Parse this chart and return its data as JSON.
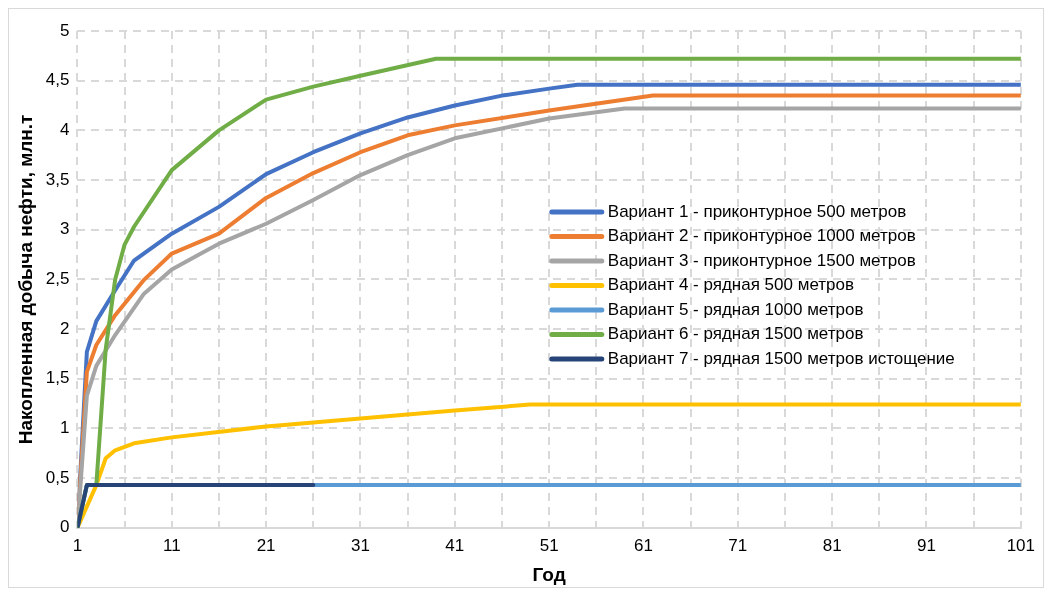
{
  "chart_data": {
    "type": "line",
    "xlabel": "Год",
    "ylabel": "Накопленная добыча нефти, млн.т",
    "xlim": [
      1,
      101
    ],
    "xticks": [
      1,
      {
        "value": 6,
        "label": null
      },
      11,
      {
        "value": 16,
        "label": null
      },
      21,
      {
        "value": 26,
        "label": null
      },
      31,
      {
        "value": 36,
        "label": null
      },
      41,
      {
        "value": 46,
        "label": null
      },
      51,
      {
        "value": 56,
        "label": null
      },
      61,
      {
        "value": 66,
        "label": null
      },
      71,
      {
        "value": 76,
        "label": null
      },
      81,
      {
        "value": 86,
        "label": null
      },
      91,
      {
        "value": 96,
        "label": null
      },
      101
    ],
    "ylim": [
      0,
      5
    ],
    "yticks": [
      0,
      {
        "value": 0.5,
        "label": "0,5"
      },
      1,
      {
        "value": 1.5,
        "label": "1,5"
      },
      2,
      {
        "value": 2.5,
        "label": "2,5"
      },
      3,
      {
        "value": 3.5,
        "label": "3,5"
      },
      4,
      {
        "value": 4.5,
        "label": "4,5"
      },
      5
    ],
    "grid": true,
    "legend": "right",
    "marker": "none",
    "line_style": "solid",
    "series": [
      {
        "name": "Вариант 1 - приконтурное 500 метров",
        "color": "#4472c4",
        "x": [
          1,
          2,
          3,
          5,
          7,
          11,
          16,
          21,
          26,
          31,
          36,
          41,
          46,
          51,
          54,
          101
        ],
        "values": [
          0,
          1.77,
          2.08,
          2.39,
          2.69,
          2.96,
          3.23,
          3.56,
          3.78,
          3.97,
          4.13,
          4.25,
          4.35,
          4.42,
          4.46,
          4.46
        ]
      },
      {
        "name": "Вариант 2 - приконтурное 1000 метров",
        "color": "#ed7d31",
        "x": [
          1,
          2,
          3,
          5,
          8,
          11,
          16,
          21,
          26,
          31,
          36,
          41,
          51,
          62,
          101
        ],
        "values": [
          0,
          1.57,
          1.84,
          2.14,
          2.49,
          2.76,
          2.96,
          3.32,
          3.57,
          3.78,
          3.95,
          4.05,
          4.2,
          4.35,
          4.35
        ]
      },
      {
        "name": "Вариант 3 - приконтурное 1500 метров",
        "color": "#a5a5a5",
        "x": [
          1,
          2,
          3,
          5,
          8,
          11,
          16,
          21,
          26,
          31,
          36,
          41,
          51,
          59,
          101
        ],
        "values": [
          0,
          1.33,
          1.63,
          1.94,
          2.35,
          2.6,
          2.86,
          3.06,
          3.3,
          3.55,
          3.75,
          3.92,
          4.12,
          4.22,
          4.22
        ]
      },
      {
        "name": "Вариант 4 - рядная 500 метров",
        "color": "#ffc000",
        "x": [
          1,
          3,
          4,
          5,
          7,
          11,
          21,
          31,
          41,
          49,
          101
        ],
        "values": [
          0,
          0.43,
          0.7,
          0.78,
          0.85,
          0.91,
          1.02,
          1.1,
          1.18,
          1.24,
          1.24
        ]
      },
      {
        "name": "Вариант 5 - рядная 1000 метров",
        "color": "#5b9bd5",
        "x": [
          1,
          2,
          101
        ],
        "values": [
          0,
          0.43,
          0.43
        ]
      },
      {
        "name": "Вариант 6 - рядная 1500 метров",
        "color": "#70ad47",
        "x": [
          1,
          2,
          3,
          4,
          5,
          6,
          7,
          11,
          16,
          21,
          26,
          31,
          39,
          101
        ],
        "values": [
          0,
          0.43,
          0.43,
          1.8,
          2.5,
          2.85,
          3.03,
          3.6,
          4.0,
          4.31,
          4.44,
          4.55,
          4.72,
          4.72
        ]
      },
      {
        "name": "Вариант 7 - рядная 1500 метров истощение",
        "color": "#264478",
        "x": [
          1,
          2,
          26
        ],
        "values": [
          0,
          0.43,
          0.43
        ]
      }
    ]
  }
}
